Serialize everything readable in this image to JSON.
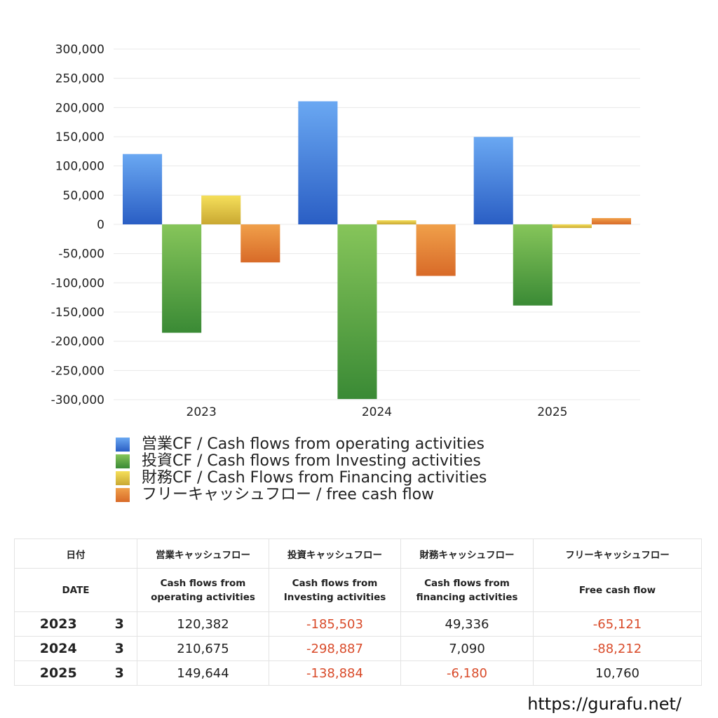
{
  "chart_data": {
    "type": "bar",
    "categories": [
      "2023",
      "2024",
      "2025"
    ],
    "series": [
      {
        "name": "営業CF / Cash flows from operating activities",
        "values": [
          120382,
          210675,
          149644
        ],
        "color_top": "#6aa8f2",
        "color_bottom": "#2a5ec4"
      },
      {
        "name": "投資CF / Cash flows from Investing activities",
        "values": [
          -185503,
          -298887,
          -138884
        ],
        "color_top": "#86c55a",
        "color_bottom": "#3a8a35"
      },
      {
        "name": "財務CF / Cash Flows from Financing activities",
        "values": [
          49336,
          7090,
          -6180
        ],
        "color_top": "#f5df5a",
        "color_bottom": "#c9a832"
      },
      {
        "name": "フリーキャッシュフロー / free cash flow",
        "values": [
          -65121,
          -88212,
          10760
        ],
        "color_top": "#f0a04a",
        "color_bottom": "#d86a28"
      }
    ],
    "ylim": [
      -300000,
      300000
    ],
    "yticks": [
      "300,000",
      "250,000",
      "200,000",
      "150,000",
      "100,000",
      "50,000",
      "0",
      "-50,000",
      "-100,000",
      "-150,000",
      "-200,000",
      "-250,000",
      "-300,000"
    ],
    "ytick_values": [
      300000,
      250000,
      200000,
      150000,
      100000,
      50000,
      0,
      -50000,
      -100000,
      -150000,
      -200000,
      -250000,
      -300000
    ],
    "grid": true,
    "legend_position": "bottom"
  },
  "table": {
    "header_row1": [
      "日付",
      "営業キャッシュフロー",
      "投資キャッシュフロー",
      "財務キャッシュフロー",
      "フリーキャッシュフロー"
    ],
    "header_row2": [
      "DATE",
      "Cash flows from\noperating activities",
      "Cash flows from\nInvesting activities",
      "Cash flows from\nfinancing activities",
      "Free cash flow"
    ],
    "rows": [
      {
        "year": "2023",
        "month": "3",
        "values": [
          "120,382",
          "-185,503",
          "49,336",
          "-65,121"
        ]
      },
      {
        "year": "2024",
        "month": "3",
        "values": [
          "210,675",
          "-298,887",
          "7,090",
          "-88,212"
        ]
      },
      {
        "year": "2025",
        "month": "3",
        "values": [
          "149,644",
          "-138,884",
          "-6,180",
          "10,760"
        ]
      }
    ]
  },
  "footer": {
    "site": "https://gurafu.net/"
  }
}
